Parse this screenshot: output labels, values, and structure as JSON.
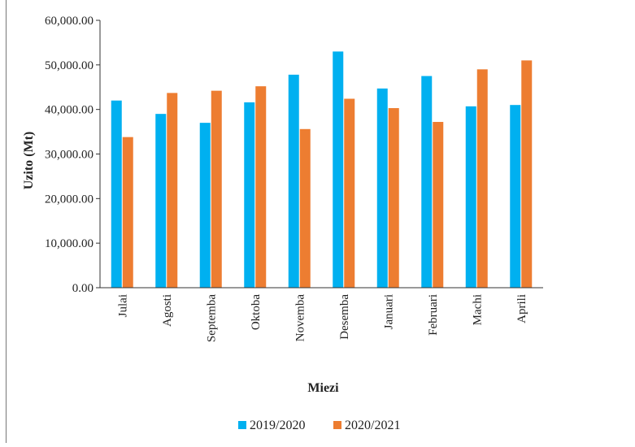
{
  "chart_data": {
    "type": "bar",
    "title": "",
    "xlabel": "Miezi",
    "ylabel": "Uzito (Mt)",
    "ylim": [
      0,
      60000
    ],
    "yticks": [
      0,
      10000,
      20000,
      30000,
      40000,
      50000,
      60000
    ],
    "ytick_labels": [
      "0.00",
      "10,000.00",
      "20,000.00",
      "30,000.00",
      "40,000.00",
      "50,000.00",
      "60,000.00"
    ],
    "grid": false,
    "legend_position": "bottom",
    "categories": [
      "Julai",
      "Agosti",
      "Septemba",
      "Oktoba",
      "Novemba",
      "Desemba",
      "Januari",
      "Februari",
      "Machi",
      "Aprili"
    ],
    "series": [
      {
        "name": "2019/2020",
        "color": "#00B0F0",
        "values": [
          42000,
          39000,
          37000,
          41600,
          47800,
          53000,
          44700,
          47500,
          40700,
          41000
        ]
      },
      {
        "name": "2020/2021",
        "color": "#ED7D31",
        "values": [
          33800,
          43700,
          44200,
          45200,
          35600,
          42400,
          40300,
          37200,
          49000,
          51000
        ]
      }
    ]
  }
}
